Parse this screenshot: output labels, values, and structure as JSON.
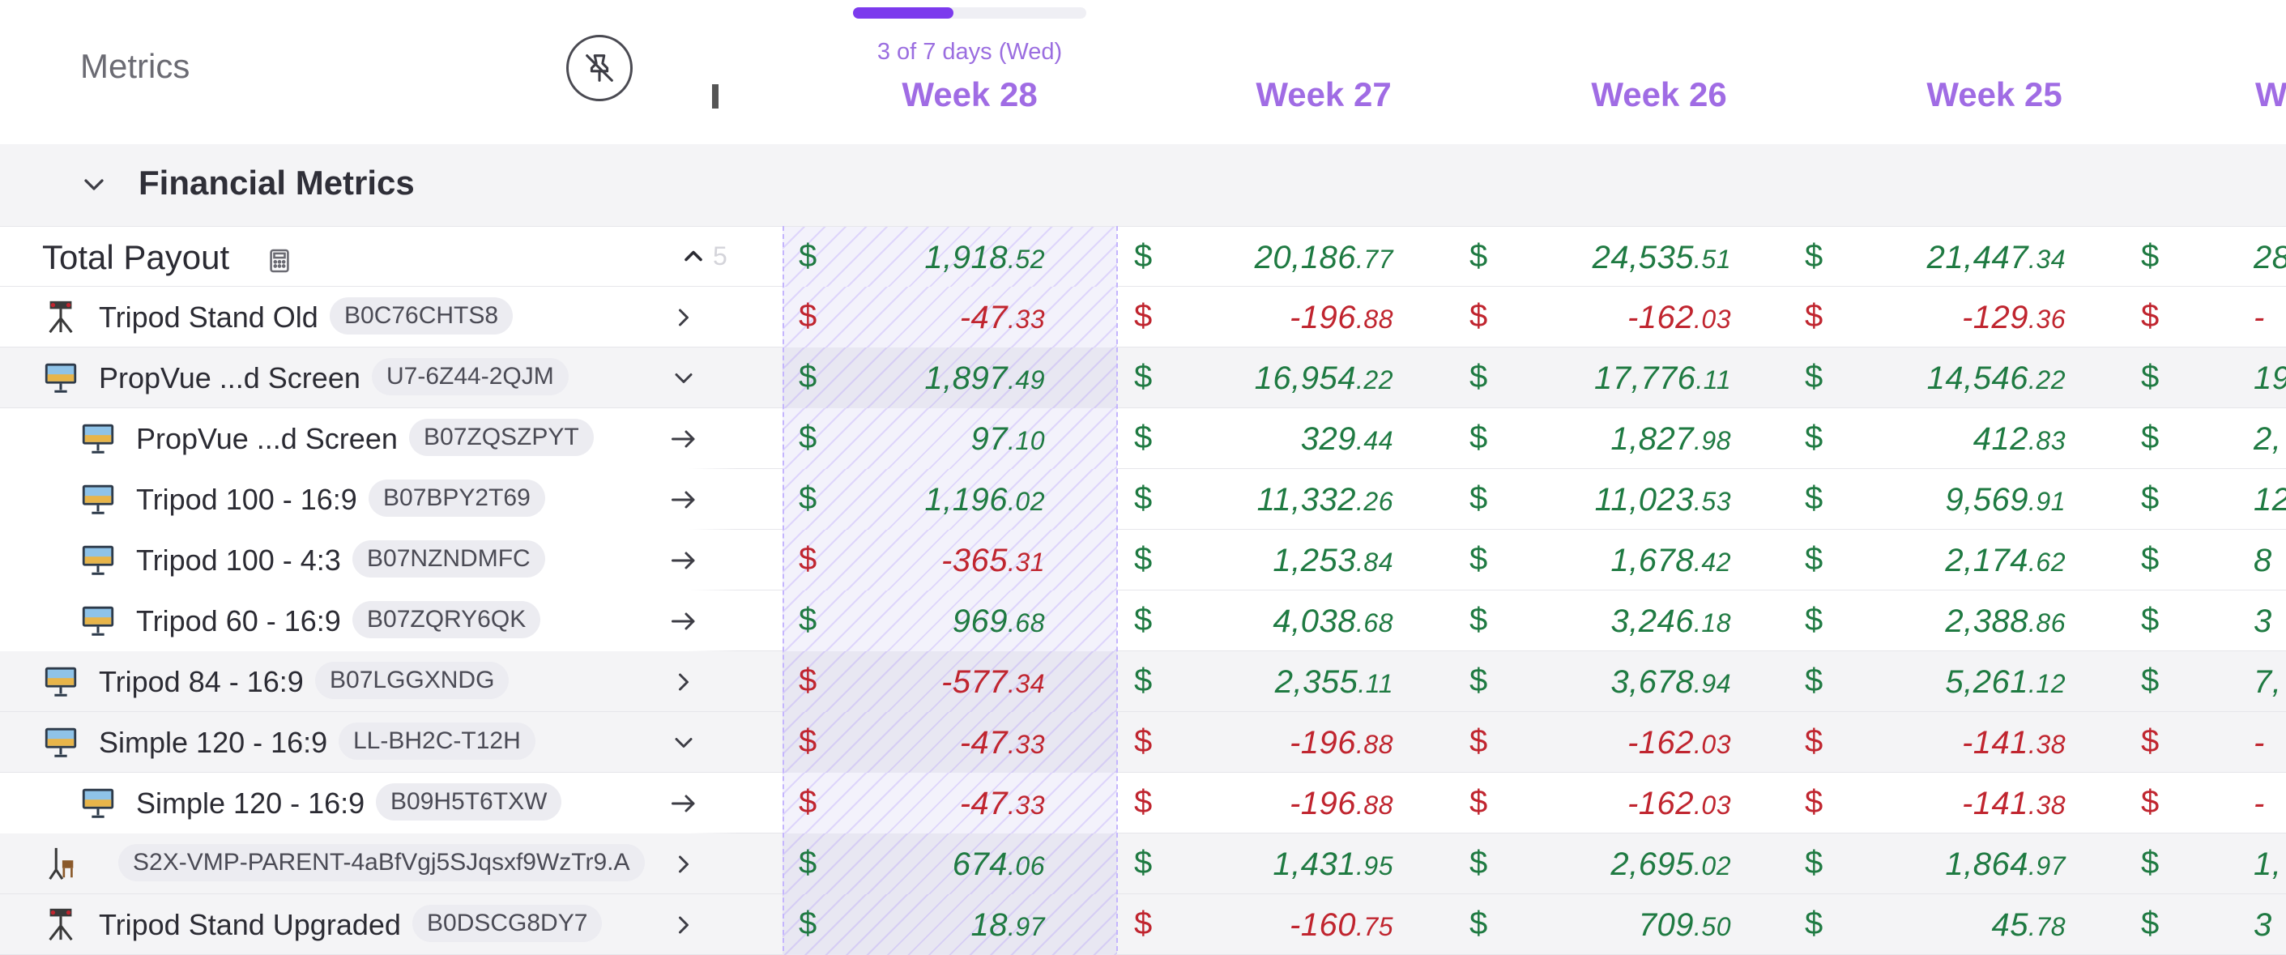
{
  "header": {
    "title": "Metrics",
    "progress": {
      "label": "3 of 7 days (Wed)",
      "fraction": 0.43
    },
    "weeks": [
      "Week 28",
      "Week 27",
      "Week 26",
      "Week 25",
      "W"
    ]
  },
  "section": {
    "title": "Financial Metrics"
  },
  "total": {
    "label": "Total Payout",
    "values": [
      {
        "s": "$",
        "i": "1,918",
        "d": ".52",
        "neg": false
      },
      {
        "s": "$",
        "i": "20,186",
        "d": ".77",
        "neg": false
      },
      {
        "s": "$",
        "i": "24,535",
        "d": ".51",
        "neg": false
      },
      {
        "s": "$",
        "i": "21,447",
        "d": ".34",
        "neg": false
      },
      {
        "s": "$",
        "i": "28",
        "d": "",
        "neg": false
      }
    ]
  },
  "rows": [
    {
      "label": "Tripod Stand Old",
      "badge": "B0C76CHTS8",
      "indent": false,
      "bg": "white",
      "thumb": "tripod-stand-icon",
      "arrow": "chevron-right-icon",
      "values": [
        {
          "s": "$",
          "i": "-47",
          "d": ".33",
          "neg": true
        },
        {
          "s": "$",
          "i": "-196",
          "d": ".88",
          "neg": true
        },
        {
          "s": "$",
          "i": "-162",
          "d": ".03",
          "neg": true
        },
        {
          "s": "$",
          "i": "-129",
          "d": ".36",
          "neg": true
        },
        {
          "s": "$",
          "i": "-",
          "d": "",
          "neg": true
        }
      ]
    },
    {
      "label": "PropVue ...d Screen",
      "badge": "U7-6Z44-2QJM",
      "indent": false,
      "bg": "grey",
      "thumb": "screen-icon",
      "arrow": "chevron-down-icon",
      "values": [
        {
          "s": "$",
          "i": "1,897",
          "d": ".49",
          "neg": false
        },
        {
          "s": "$",
          "i": "16,954",
          "d": ".22",
          "neg": false
        },
        {
          "s": "$",
          "i": "17,776",
          "d": ".11",
          "neg": false
        },
        {
          "s": "$",
          "i": "14,546",
          "d": ".22",
          "neg": false
        },
        {
          "s": "$",
          "i": "19",
          "d": "",
          "neg": false
        }
      ]
    },
    {
      "label": "PropVue ...d Screen",
      "badge": "B07ZQSZPYT",
      "indent": true,
      "bg": "white",
      "thumb": "screen-icon",
      "arrow": "arrow-right-icon",
      "values": [
        {
          "s": "$",
          "i": "97",
          "d": ".10",
          "neg": false
        },
        {
          "s": "$",
          "i": "329",
          "d": ".44",
          "neg": false
        },
        {
          "s": "$",
          "i": "1,827",
          "d": ".98",
          "neg": false
        },
        {
          "s": "$",
          "i": "412",
          "d": ".83",
          "neg": false
        },
        {
          "s": "$",
          "i": "2,",
          "d": "",
          "neg": false
        }
      ]
    },
    {
      "label": "Tripod 100 - 16:9",
      "badge": "B07BPY2T69",
      "indent": true,
      "bg": "white",
      "thumb": "screen-icon",
      "arrow": "arrow-right-icon",
      "values": [
        {
          "s": "$",
          "i": "1,196",
          "d": ".02",
          "neg": false
        },
        {
          "s": "$",
          "i": "11,332",
          "d": ".26",
          "neg": false
        },
        {
          "s": "$",
          "i": "11,023",
          "d": ".53",
          "neg": false
        },
        {
          "s": "$",
          "i": "9,569",
          "d": ".91",
          "neg": false
        },
        {
          "s": "$",
          "i": "12",
          "d": "",
          "neg": false
        }
      ]
    },
    {
      "label": "Tripod 100 - 4:3",
      "badge": "B07NZNDMFC",
      "indent": true,
      "bg": "white",
      "thumb": "screen-icon",
      "arrow": "arrow-right-icon",
      "values": [
        {
          "s": "$",
          "i": "-365",
          "d": ".31",
          "neg": true
        },
        {
          "s": "$",
          "i": "1,253",
          "d": ".84",
          "neg": false
        },
        {
          "s": "$",
          "i": "1,678",
          "d": ".42",
          "neg": false
        },
        {
          "s": "$",
          "i": "2,174",
          "d": ".62",
          "neg": false
        },
        {
          "s": "$",
          "i": "8",
          "d": "",
          "neg": false
        }
      ]
    },
    {
      "label": "Tripod 60 - 16:9",
      "badge": "B07ZQRY6QK",
      "indent": true,
      "bg": "white",
      "thumb": "screen-icon",
      "arrow": "arrow-right-icon",
      "values": [
        {
          "s": "$",
          "i": "969",
          "d": ".68",
          "neg": false
        },
        {
          "s": "$",
          "i": "4,038",
          "d": ".68",
          "neg": false
        },
        {
          "s": "$",
          "i": "3,246",
          "d": ".18",
          "neg": false
        },
        {
          "s": "$",
          "i": "2,388",
          "d": ".86",
          "neg": false
        },
        {
          "s": "$",
          "i": "3",
          "d": "",
          "neg": false
        }
      ]
    },
    {
      "label": "Tripod 84 - 16:9",
      "badge": "B07LGGXNDG",
      "indent": false,
      "bg": "grey",
      "thumb": "screen-icon",
      "arrow": "chevron-right-icon",
      "values": [
        {
          "s": "$",
          "i": "-577",
          "d": ".34",
          "neg": true
        },
        {
          "s": "$",
          "i": "2,355",
          "d": ".11",
          "neg": false
        },
        {
          "s": "$",
          "i": "3,678",
          "d": ".94",
          "neg": false
        },
        {
          "s": "$",
          "i": "5,261",
          "d": ".12",
          "neg": false
        },
        {
          "s": "$",
          "i": "7,",
          "d": "",
          "neg": false
        }
      ]
    },
    {
      "label": "Simple 120 - 16:9",
      "badge": "LL-BH2C-T12H",
      "indent": false,
      "bg": "grey",
      "thumb": "screen-icon",
      "arrow": "chevron-down-icon",
      "values": [
        {
          "s": "$",
          "i": "-47",
          "d": ".33",
          "neg": true
        },
        {
          "s": "$",
          "i": "-196",
          "d": ".88",
          "neg": true
        },
        {
          "s": "$",
          "i": "-162",
          "d": ".03",
          "neg": true
        },
        {
          "s": "$",
          "i": "-141",
          "d": ".38",
          "neg": true
        },
        {
          "s": "$",
          "i": "-",
          "d": "",
          "neg": true
        }
      ]
    },
    {
      "label": "Simple 120 - 16:9",
      "badge": "B09H5T6TXW",
      "indent": true,
      "bg": "white",
      "thumb": "screen-icon",
      "arrow": "arrow-right-icon",
      "values": [
        {
          "s": "$",
          "i": "-47",
          "d": ".33",
          "neg": true
        },
        {
          "s": "$",
          "i": "-196",
          "d": ".88",
          "neg": true
        },
        {
          "s": "$",
          "i": "-162",
          "d": ".03",
          "neg": true
        },
        {
          "s": "$",
          "i": "-141",
          "d": ".38",
          "neg": true
        },
        {
          "s": "$",
          "i": "-",
          "d": "",
          "neg": true
        }
      ]
    },
    {
      "label": "",
      "badge": "S2X-VMP-PARENT-4aBfVgj5SJqsxf9WzTr9.A",
      "indent": false,
      "bg": "grey",
      "thumb": "chair-stand-icon",
      "arrow": "chevron-right-icon",
      "values": [
        {
          "s": "$",
          "i": "674",
          "d": ".06",
          "neg": false
        },
        {
          "s": "$",
          "i": "1,431",
          "d": ".95",
          "neg": false
        },
        {
          "s": "$",
          "i": "2,695",
          "d": ".02",
          "neg": false
        },
        {
          "s": "$",
          "i": "1,864",
          "d": ".97",
          "neg": false
        },
        {
          "s": "$",
          "i": "1,",
          "d": "",
          "neg": false
        }
      ]
    },
    {
      "label": "Tripod Stand Upgraded",
      "badge": "B0DSCG8DY7",
      "indent": false,
      "bg": "grey",
      "thumb": "tripod-stand-icon",
      "arrow": "chevron-right-icon",
      "values": [
        {
          "s": "$",
          "i": "18",
          "d": ".97",
          "neg": false
        },
        {
          "s": "$",
          "i": "-160",
          "d": ".75",
          "neg": true
        },
        {
          "s": "$",
          "i": "709",
          "d": ".50",
          "neg": false
        },
        {
          "s": "$",
          "i": "45",
          "d": ".78",
          "neg": false
        },
        {
          "s": "$",
          "i": "3",
          "d": "",
          "neg": false
        }
      ]
    }
  ]
}
